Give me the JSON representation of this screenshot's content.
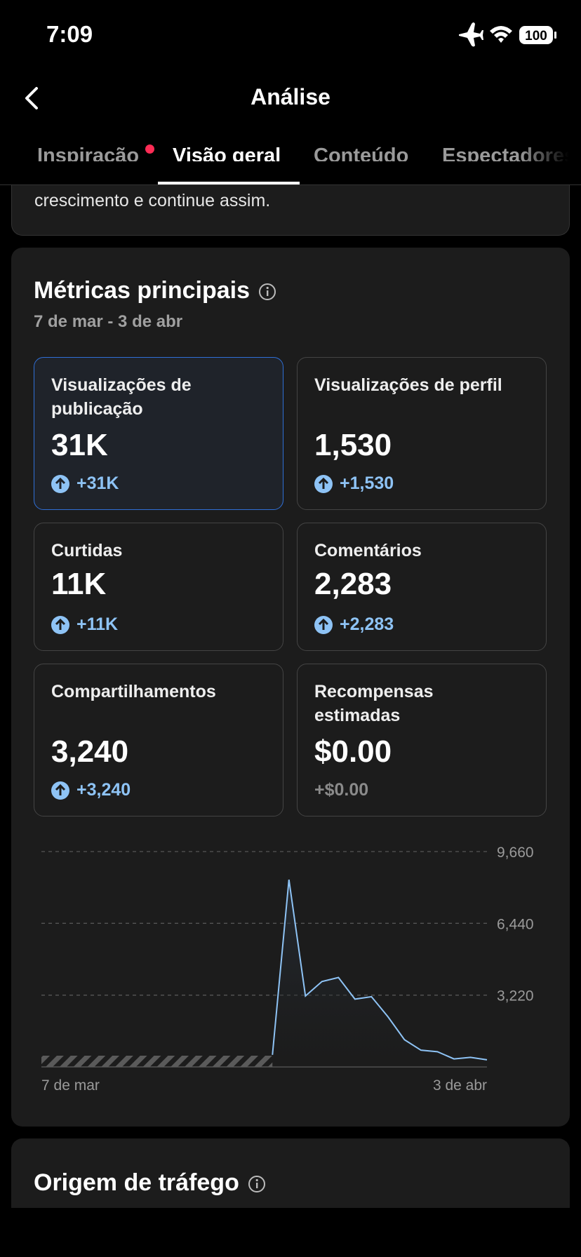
{
  "status_bar": {
    "time": "7:09",
    "battery": "100"
  },
  "header": {
    "title": "Análise"
  },
  "tabs": [
    "Inspiração",
    "Visão geral",
    "Conteúdo",
    "Espectadores"
  ],
  "intro": {
    "text": "crescimento e continue assim."
  },
  "metrics": {
    "title": "Métricas principais",
    "date_range": "7 de mar - 3 de abr",
    "tiles": [
      {
        "label": "Visualizações de publicação",
        "value": "31K",
        "change": "+31K"
      },
      {
        "label": "Visualizações de perfil",
        "value": "1,530",
        "change": "+1,530"
      },
      {
        "label": "Curtidas",
        "value": "11K",
        "change": "+11K"
      },
      {
        "label": "Comentários",
        "value": "2,283",
        "change": "+2,283"
      },
      {
        "label": "Compartilhamentos",
        "value": "3,240",
        "change": "+3,240"
      },
      {
        "label": "Recompensas estimadas",
        "value": "$0.00",
        "change": "+$0.00"
      }
    ]
  },
  "chart_data": {
    "type": "line",
    "categories": [
      "7 de mar",
      null,
      null,
      null,
      null,
      null,
      null,
      null,
      null,
      null,
      null,
      null,
      null,
      null,
      null,
      null,
      null,
      null,
      null,
      null,
      null,
      null,
      null,
      null,
      null,
      null,
      null,
      "3 de abr"
    ],
    "series": [
      {
        "color": "#8ec3f5",
        "values": [
          null,
          null,
          null,
          null,
          null,
          null,
          null,
          null,
          null,
          null,
          null,
          null,
          null,
          null,
          540,
          8400,
          3180,
          3830,
          4010,
          3040,
          3150,
          2250,
          1220,
          750,
          680,
          360,
          430,
          320
        ]
      }
    ],
    "ylim": [
      0,
      9660
    ],
    "yticks": [
      {
        "value": 3220,
        "label": "3,220"
      },
      {
        "value": 6440,
        "label": "6,440"
      },
      {
        "value": 9660,
        "label": "9,660"
      }
    ],
    "grid": true
  },
  "traffic": {
    "title": "Origem de tráfego"
  }
}
